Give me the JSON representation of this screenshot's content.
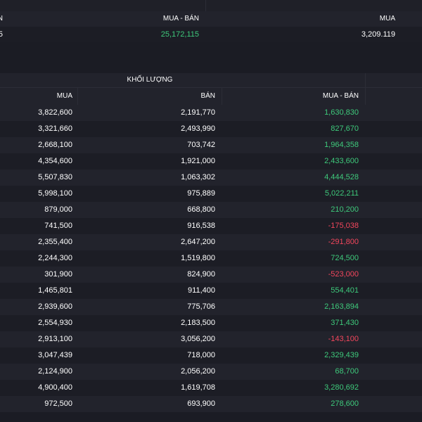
{
  "colors": {
    "positive": "#3ec97b",
    "negative": "#f2465c",
    "background": "#1b1c24"
  },
  "top": {
    "headers": {
      "left_partial": "N",
      "mua_ban": "MUA - BÁN",
      "mua": "MUA"
    },
    "values": {
      "left_partial": "5",
      "mua_ban": "25,172,115",
      "mua": "3,209.119"
    }
  },
  "volume": {
    "title": "KHỐI LƯỢNG",
    "headers": {
      "mua": "MUA",
      "ban": "BÁN",
      "mua_ban": "MUA - BÁN"
    },
    "rows": [
      {
        "mua": "3,822,600",
        "ban": "2,191,770",
        "mua_ban": "1,630,830",
        "sign": "pos"
      },
      {
        "mua": "3,321,660",
        "ban": "2,493,990",
        "mua_ban": "827,670",
        "sign": "pos"
      },
      {
        "mua": "2,668,100",
        "ban": "703,742",
        "mua_ban": "1,964,358",
        "sign": "pos"
      },
      {
        "mua": "4,354,600",
        "ban": "1,921,000",
        "mua_ban": "2,433,600",
        "sign": "pos"
      },
      {
        "mua": "5,507,830",
        "ban": "1,063,302",
        "mua_ban": "4,444,528",
        "sign": "pos"
      },
      {
        "mua": "5,998,100",
        "ban": "975,889",
        "mua_ban": "5,022,211",
        "sign": "pos"
      },
      {
        "mua": "879,000",
        "ban": "668,800",
        "mua_ban": "210,200",
        "sign": "pos"
      },
      {
        "mua": "741,500",
        "ban": "916,538",
        "mua_ban": "-175,038",
        "sign": "neg"
      },
      {
        "mua": "2,355,400",
        "ban": "2,647,200",
        "mua_ban": "-291,800",
        "sign": "neg"
      },
      {
        "mua": "2,244,300",
        "ban": "1,519,800",
        "mua_ban": "724,500",
        "sign": "pos"
      },
      {
        "mua": "301,900",
        "ban": "824,900",
        "mua_ban": "-523,000",
        "sign": "neg"
      },
      {
        "mua": "1,465,801",
        "ban": "911,400",
        "mua_ban": "554,401",
        "sign": "pos"
      },
      {
        "mua": "2,939,600",
        "ban": "775,706",
        "mua_ban": "2,163,894",
        "sign": "pos"
      },
      {
        "mua": "2,554,930",
        "ban": "2,183,500",
        "mua_ban": "371,430",
        "sign": "pos"
      },
      {
        "mua": "2,913,100",
        "ban": "3,056,200",
        "mua_ban": "-143,100",
        "sign": "neg"
      },
      {
        "mua": "3,047,439",
        "ban": "718,000",
        "mua_ban": "2,329,439",
        "sign": "pos"
      },
      {
        "mua": "2,124,900",
        "ban": "2,056,200",
        "mua_ban": "68,700",
        "sign": "pos"
      },
      {
        "mua": "4,900,400",
        "ban": "1,619,708",
        "mua_ban": "3,280,692",
        "sign": "pos"
      },
      {
        "mua": "972,500",
        "ban": "693,900",
        "mua_ban": "278,600",
        "sign": "pos"
      }
    ]
  }
}
